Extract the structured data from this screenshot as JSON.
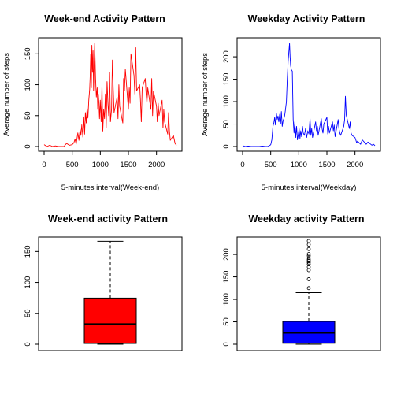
{
  "chart_data": [
    {
      "type": "line",
      "title": "Week-end Activity Pattern",
      "xlabel": "5-minutes interval(Week-end)",
      "ylabel": "Average number of steps",
      "color": "#ff0000",
      "xlim": [
        0,
        2355
      ],
      "ylim": [
        0,
        167
      ],
      "xticks": [
        0,
        500,
        1000,
        1500,
        2000
      ],
      "yticks": [
        0,
        50,
        100,
        150
      ],
      "series": [
        {
          "x": [
            0,
            50,
            100,
            150,
            200,
            250,
            300,
            350,
            400,
            450,
            500,
            530,
            550,
            570,
            600,
            620,
            640,
            655,
            670,
            690,
            705,
            720,
            735,
            750,
            765,
            780,
            795,
            810,
            820,
            830,
            840,
            850,
            860,
            870,
            880,
            890,
            900,
            915,
            930,
            945,
            955,
            965,
            975,
            985,
            1000,
            1015,
            1030,
            1045,
            1060,
            1075,
            1090,
            1105,
            1120,
            1135,
            1150,
            1165,
            1180,
            1200,
            1215,
            1230,
            1245,
            1300,
            1315,
            1330,
            1345,
            1400,
            1415,
            1430,
            1445,
            1500,
            1515,
            1530,
            1545,
            1600,
            1615,
            1630,
            1645,
            1700,
            1715,
            1730,
            1745,
            1800,
            1815,
            1830,
            1845,
            1900,
            1915,
            1930,
            1945,
            2000,
            2015,
            2030,
            2045,
            2100,
            2115,
            2130,
            2145,
            2200,
            2215,
            2230,
            2245,
            2300,
            2330,
            2355
          ],
          "y": [
            3,
            0,
            2,
            0,
            1,
            0,
            0,
            0,
            5,
            2,
            3,
            6,
            12,
            4,
            22,
            10,
            28,
            18,
            35,
            15,
            48,
            20,
            55,
            38,
            62,
            46,
            75,
            92,
            115,
            150,
            95,
            164,
            120,
            155,
            90,
            130,
            167,
            110,
            80,
            95,
            60,
            85,
            70,
            45,
            75,
            40,
            100,
            25,
            60,
            45,
            85,
            30,
            105,
            70,
            50,
            120,
            40,
            60,
            140,
            95,
            55,
            80,
            45,
            100,
            65,
            38,
            110,
            90,
            125,
            60,
            95,
            70,
            150,
            115,
            85,
            160,
            90,
            100,
            75,
            40,
            95,
            110,
            85,
            70,
            95,
            60,
            110,
            50,
            90,
            65,
            40,
            70,
            50,
            75,
            30,
            60,
            40,
            20,
            55,
            25,
            10,
            18,
            5,
            2
          ]
        }
      ]
    },
    {
      "type": "line",
      "title": "Weekday Activity Pattern",
      "xlabel": "5-minutes interval(Weekday)",
      "ylabel": "Average number of steps",
      "color": "#0000ff",
      "xlim": [
        0,
        2355
      ],
      "ylim": [
        0,
        230
      ],
      "xticks": [
        0,
        500,
        1000,
        1500,
        2000
      ],
      "yticks": [
        0,
        50,
        100,
        150,
        200
      ],
      "series": [
        {
          "x": [
            0,
            50,
            100,
            150,
            200,
            250,
            300,
            350,
            400,
            450,
            500,
            520,
            540,
            555,
            570,
            585,
            600,
            615,
            630,
            645,
            660,
            675,
            690,
            705,
            720,
            735,
            750,
            765,
            780,
            795,
            810,
            825,
            835,
            845,
            855,
            870,
            885,
            900,
            915,
            930,
            945,
            960,
            975,
            990,
            1005,
            1020,
            1035,
            1050,
            1065,
            1080,
            1100,
            1120,
            1140,
            1160,
            1180,
            1200,
            1215,
            1230,
            1245,
            1300,
            1315,
            1330,
            1345,
            1400,
            1415,
            1430,
            1445,
            1500,
            1515,
            1530,
            1545,
            1600,
            1615,
            1630,
            1645,
            1700,
            1715,
            1730,
            1745,
            1800,
            1815,
            1830,
            1845,
            1900,
            1915,
            1930,
            1945,
            2000,
            2015,
            2030,
            2045,
            2100,
            2130,
            2200,
            2230,
            2300,
            2330,
            2355
          ],
          "y": [
            2,
            0,
            1,
            0,
            0,
            0,
            0,
            1,
            0,
            0,
            4,
            15,
            45,
            52,
            65,
            48,
            75,
            60,
            68,
            55,
            72,
            50,
            78,
            45,
            58,
            62,
            70,
            85,
            100,
            150,
            190,
            215,
            230,
            200,
            180,
            170,
            168,
            60,
            30,
            55,
            20,
            45,
            15,
            25,
            40,
            18,
            35,
            22,
            45,
            30,
            25,
            40,
            20,
            35,
            28,
            62,
            25,
            40,
            20,
            55,
            35,
            45,
            25,
            62,
            40,
            30,
            50,
            65,
            28,
            45,
            30,
            55,
            35,
            48,
            22,
            60,
            40,
            30,
            25,
            45,
            60,
            112,
            70,
            40,
            55,
            30,
            25,
            20,
            15,
            8,
            12,
            5,
            15,
            5,
            10,
            3,
            5,
            2
          ]
        }
      ]
    },
    {
      "type": "box",
      "title": "Week-end activity Pattern",
      "color": "#ff0000",
      "ylim": [
        0,
        167
      ],
      "yticks": [
        0,
        50,
        100,
        150
      ],
      "min": 0,
      "q1": 1.3,
      "median": 32.3,
      "q3": 74.7,
      "max": 166.6,
      "outliers": []
    },
    {
      "type": "box",
      "title": "Weekday activity Pattern",
      "color": "#0000ff",
      "ylim": [
        0,
        230
      ],
      "yticks": [
        0,
        50,
        100,
        150,
        200
      ],
      "min": 0,
      "q1": 2.2,
      "median": 25.8,
      "q3": 50.9,
      "max": 115,
      "outliers": [
        125,
        145,
        165,
        172,
        178,
        182,
        185,
        188,
        192,
        197,
        201,
        212,
        222,
        230
      ]
    }
  ]
}
